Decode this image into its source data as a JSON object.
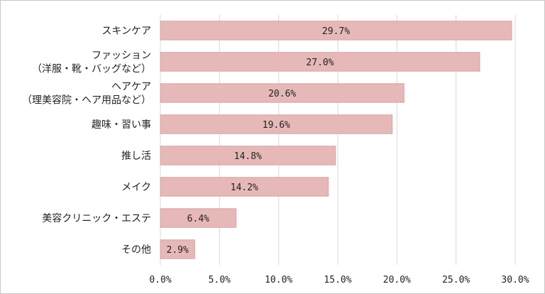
{
  "chart_data": {
    "type": "bar",
    "orientation": "horizontal",
    "title": "",
    "xlabel": "",
    "ylabel": "",
    "categories": [
      [
        "スキンケア"
      ],
      [
        "ファッション",
        "（洋服・靴・バッグなど）"
      ],
      [
        "ヘアケア",
        "（理美容院・ヘア用品など）"
      ],
      [
        "趣味・習い事"
      ],
      [
        "推し活"
      ],
      [
        "メイク"
      ],
      [
        "美容クリニック・エステ"
      ],
      [
        "その他"
      ]
    ],
    "values": [
      29.7,
      27.0,
      20.6,
      19.6,
      14.8,
      14.2,
      6.4,
      2.9
    ],
    "data_labels": [
      "29.7%",
      "27.0%",
      "20.6%",
      "19.6%",
      "14.8%",
      "14.2%",
      "6.4%",
      "2.9%"
    ],
    "xlim": [
      0,
      30
    ],
    "x_ticks": [
      0,
      5,
      10,
      15,
      20,
      25,
      30
    ],
    "x_tick_labels": [
      "0.0%",
      "5.0%",
      "10.0%",
      "15.0%",
      "20.0%",
      "25.0%",
      "30.0%"
    ],
    "grid": true,
    "legend": "none",
    "bar_color": "#e6b9b8",
    "bar_edge_color": "#d4a3a2",
    "grid_color": "#d9d9d9"
  }
}
